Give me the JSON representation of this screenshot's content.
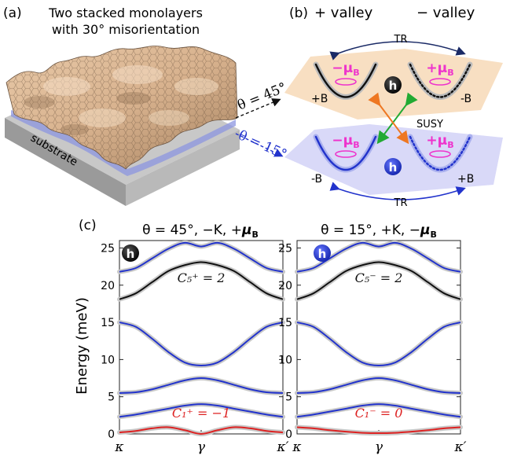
{
  "panel_a": {
    "letter": "(a)",
    "title_line1": "Two stacked monolayers",
    "title_line2": "with 30° misorientation",
    "substrate_label": "substrate",
    "theta45": "θ = 45°",
    "theta15": "θ = 15°"
  },
  "panel_b": {
    "letter": "(b)",
    "plus_valley": "+ valley",
    "minus_valley": "− valley",
    "tr_top": "TR",
    "tr_bottom": "TR",
    "susy": "SUSY",
    "hole": "h",
    "top_left": {
      "moment": "−μ",
      "sub": "B",
      "field": "+B"
    },
    "top_right": {
      "moment": "+μ",
      "sub": "B",
      "field": "-B"
    },
    "bottom_left": {
      "moment": "−μ",
      "sub": "B",
      "field": "-B"
    },
    "bottom_right": {
      "moment": "+μ",
      "sub": "B",
      "field": "+B"
    },
    "colors": {
      "top_band": "#f8dfc2",
      "bottom_band": "#d9d9f8",
      "magenta": "#ee33cc",
      "blue": "#2233cc",
      "tr_arrow": "#1a2a66",
      "susy_green": "#22aa33",
      "susy_orange": "#ee7722"
    }
  },
  "panel_c": {
    "letter": "(c)",
    "ylabel": "Energy (meV)",
    "hole": "h"
  },
  "chart_data": [
    {
      "type": "line",
      "title": "θ = 45°, −K, +μB",
      "title_parts": {
        "a": "θ = 45°, −K, +",
        "b": "μ",
        "c": "B"
      },
      "ylabel": "Energy (meV)",
      "ylim": [
        0,
        26
      ],
      "yticks": [
        "0",
        "5",
        "10",
        "15",
        "20",
        "25"
      ],
      "xticks": [
        "κ",
        "γ",
        "κ′"
      ],
      "x": [
        0,
        0.1,
        0.2,
        0.3,
        0.4,
        0.5,
        0.6,
        0.7,
        0.8,
        0.9,
        1.0
      ],
      "series": [
        {
          "color": "#dd2222",
          "values": [
            0.2,
            0.4,
            0.75,
            0.9,
            0.5,
            0.0,
            0.5,
            0.9,
            0.75,
            0.4,
            0.2
          ]
        },
        {
          "color": "#2233cc",
          "values": [
            2.3,
            2.6,
            3.0,
            3.4,
            3.8,
            4.0,
            3.8,
            3.4,
            3.0,
            2.6,
            2.3
          ]
        },
        {
          "color": "#2233cc",
          "values": [
            5.5,
            5.6,
            6.0,
            6.6,
            7.2,
            7.5,
            7.2,
            6.6,
            6.0,
            5.6,
            5.5
          ]
        },
        {
          "color": "#2233cc",
          "values": [
            15.0,
            14.4,
            12.8,
            11.0,
            9.6,
            9.2,
            9.6,
            11.0,
            12.8,
            14.4,
            15.0
          ]
        },
        {
          "color": "#111111",
          "values": [
            18.1,
            18.9,
            20.4,
            21.9,
            22.7,
            23.1,
            22.7,
            21.9,
            20.4,
            18.9,
            18.1
          ]
        },
        {
          "color": "#2233cc",
          "values": [
            21.8,
            22.3,
            23.6,
            24.9,
            25.7,
            25.2,
            25.7,
            24.9,
            23.6,
            22.3,
            21.8
          ]
        }
      ],
      "annotations": [
        {
          "text": "C₅⁺ = 2",
          "x": 0.5,
          "y": 20.4,
          "color": "#111111"
        },
        {
          "text": "C₁⁺ = −1",
          "x": 0.5,
          "y": 2.2,
          "color": "#dd2222"
        }
      ]
    },
    {
      "type": "line",
      "title": "θ = 15°, +K, −μB",
      "title_parts": {
        "a": "θ = 15°, +K, −",
        "b": "μ",
        "c": "B"
      },
      "ylabel": "",
      "ylim": [
        0,
        26
      ],
      "yticks": [
        "0",
        "5",
        "10",
        "15",
        "20",
        "25"
      ],
      "xticks": [
        "κ",
        "γ",
        "κ′"
      ],
      "x": [
        0,
        0.1,
        0.2,
        0.3,
        0.4,
        0.5,
        0.6,
        0.7,
        0.8,
        0.9,
        1.0
      ],
      "series": [
        {
          "color": "#dd2222",
          "values": [
            0.9,
            0.75,
            0.5,
            0.3,
            0.15,
            0.1,
            0.15,
            0.3,
            0.5,
            0.75,
            0.9
          ]
        },
        {
          "color": "#2233cc",
          "values": [
            2.3,
            2.6,
            3.0,
            3.4,
            3.8,
            4.0,
            3.8,
            3.4,
            3.0,
            2.6,
            2.3
          ]
        },
        {
          "color": "#2233cc",
          "values": [
            5.5,
            5.6,
            6.0,
            6.6,
            7.2,
            7.5,
            7.2,
            6.6,
            6.0,
            5.6,
            5.5
          ]
        },
        {
          "color": "#2233cc",
          "values": [
            15.0,
            14.4,
            12.8,
            11.0,
            9.6,
            9.2,
            9.6,
            11.0,
            12.8,
            14.4,
            15.0
          ]
        },
        {
          "color": "#111111",
          "values": [
            18.1,
            18.9,
            20.4,
            21.9,
            22.7,
            23.1,
            22.7,
            21.9,
            20.4,
            18.9,
            18.1
          ]
        },
        {
          "color": "#2233cc",
          "values": [
            21.8,
            22.3,
            23.6,
            24.9,
            25.7,
            25.2,
            25.7,
            24.9,
            23.6,
            22.3,
            21.8
          ]
        }
      ],
      "annotations": [
        {
          "text": "C₅⁻ = 2",
          "x": 0.5,
          "y": 20.4,
          "color": "#111111"
        },
        {
          "text": "C₁⁻ = 0",
          "x": 0.5,
          "y": 2.2,
          "color": "#dd2222"
        }
      ]
    }
  ]
}
